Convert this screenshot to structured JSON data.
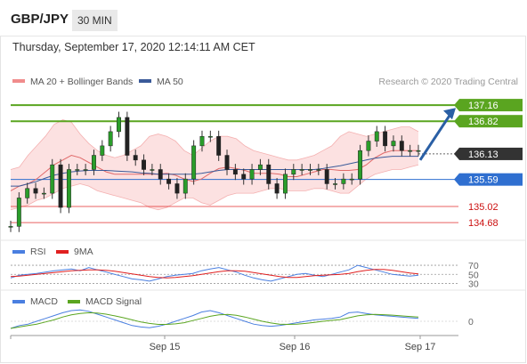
{
  "header": {
    "symbol": "GBP/JPY",
    "interval": "30 MIN",
    "datetime": "Thursday, September 17, 2020 12:14:11 AM CET"
  },
  "chart_data": [
    {
      "type": "line",
      "panel": "price",
      "legend": [
        {
          "name": "MA 20 + Bollinger Bands",
          "color": "#f08c8c"
        },
        {
          "name": "MA 50",
          "color": "#3a5a99"
        }
      ],
      "credit": "Research © 2020 Trading Central",
      "ylim": [
        134.4,
        137.5
      ],
      "price_series": [
        134.6,
        135.2,
        135.4,
        135.3,
        135.3,
        135.9,
        135.0,
        135.8,
        135.8,
        135.8,
        136.1,
        136.3,
        136.6,
        136.9,
        136.1,
        136.0,
        135.8,
        135.8,
        135.6,
        135.5,
        135.3,
        135.6,
        136.3,
        136.5,
        136.5,
        136.1,
        135.8,
        135.7,
        135.6,
        135.8,
        135.9,
        135.5,
        135.3,
        135.7,
        135.8,
        135.8,
        135.8,
        135.8,
        135.5,
        135.5,
        135.6,
        135.6,
        136.2,
        136.4,
        136.6,
        136.3,
        136.4,
        136.2,
        136.2,
        136.2
      ],
      "ma20": [
        135.35,
        135.45,
        135.5,
        135.6,
        135.75,
        135.9,
        136.0,
        136.1,
        136.05,
        135.95,
        135.85,
        135.75,
        135.7,
        135.7,
        135.7,
        135.7,
        135.7,
        135.7,
        135.72,
        135.68,
        135.6,
        135.55,
        135.6,
        135.72,
        135.82,
        135.85,
        135.82,
        135.78,
        135.72,
        135.72,
        135.72,
        135.7,
        135.65,
        135.65,
        135.7,
        135.75,
        135.8,
        135.8,
        135.78,
        135.78,
        135.8,
        135.9,
        136.05,
        136.15,
        136.2,
        136.2,
        136.2,
        136.2
      ],
      "ma50": [
        135.45,
        135.45,
        135.5,
        135.55,
        135.62,
        135.68,
        135.72,
        135.75,
        135.77,
        135.78,
        135.78,
        135.78,
        135.77,
        135.76,
        135.75,
        135.73,
        135.72,
        135.7,
        135.7,
        135.7,
        135.7,
        135.7,
        135.72,
        135.75,
        135.78,
        135.8,
        135.8,
        135.8,
        135.8,
        135.8,
        135.8,
        135.8,
        135.8,
        135.8,
        135.8,
        135.8,
        135.82,
        135.85,
        135.88,
        135.92,
        135.96,
        136.0,
        136.04,
        136.06,
        136.08,
        136.08,
        136.08,
        136.08
      ],
      "bb_upper": [
        135.8,
        135.85,
        136.1,
        136.3,
        136.5,
        136.75,
        136.85,
        136.8,
        136.55,
        136.35,
        136.2,
        136.1,
        136.05,
        136.1,
        136.2,
        136.3,
        136.5,
        136.55,
        136.5,
        136.4,
        136.2,
        136.1,
        136.25,
        136.4,
        136.5,
        136.5,
        136.45,
        136.3,
        136.2,
        136.15,
        136.1,
        136.05,
        136.0,
        136.0,
        136.05,
        136.1,
        136.2,
        136.3,
        136.5,
        136.6,
        136.55,
        136.5,
        136.55,
        136.6,
        136.65,
        136.7,
        136.7,
        136.6
      ],
      "bb_lower": [
        134.95,
        135.0,
        135.05,
        135.15,
        135.2,
        135.3,
        135.4,
        135.45,
        135.5,
        135.45,
        135.35,
        135.3,
        135.25,
        135.2,
        135.15,
        135.1,
        135.0,
        134.95,
        135.0,
        135.1,
        135.2,
        135.2,
        135.1,
        135.05,
        135.15,
        135.25,
        135.3,
        135.3,
        135.3,
        135.35,
        135.4,
        135.4,
        135.35,
        135.35,
        135.35,
        135.4,
        135.4,
        135.35,
        135.3,
        135.3,
        135.45,
        135.6,
        135.7,
        135.75,
        135.8,
        135.8,
        135.85,
        135.9
      ],
      "levels": [
        {
          "label": "137.16",
          "value": 137.16,
          "color": "#5aa520"
        },
        {
          "label": "136.82",
          "value": 136.82,
          "color": "#5aa520"
        },
        {
          "label": "136.13",
          "value": 136.13,
          "color": "#333333"
        },
        {
          "label": "135.59",
          "value": 135.59,
          "color": "#2f6fd0"
        },
        {
          "label": "135.02",
          "value": 135.02,
          "color": "#e02020"
        },
        {
          "label": "134.68",
          "value": 134.68,
          "color": "#e02020"
        }
      ],
      "forecast_arrow": {
        "from": 136.0,
        "to": 137.1,
        "color": "#2a5fa5"
      }
    },
    {
      "type": "line",
      "panel": "rsi",
      "legend": [
        {
          "name": "RSI",
          "color": "#4a7fe0"
        },
        {
          "name": "9MA",
          "color": "#e02020"
        }
      ],
      "ylim": [
        25,
        78
      ],
      "tick_labels": [
        "70",
        "50",
        "30"
      ],
      "ticks": [
        70,
        50,
        30
      ],
      "rsi": [
        42,
        48,
        50,
        52,
        55,
        58,
        60,
        62,
        58,
        65,
        60,
        55,
        50,
        45,
        40,
        38,
        35,
        40,
        45,
        48,
        50,
        52,
        58,
        62,
        65,
        60,
        55,
        48,
        42,
        38,
        35,
        40,
        45,
        50,
        52,
        48,
        45,
        50,
        55,
        60,
        70,
        65,
        60,
        55,
        50,
        48,
        46,
        48
      ],
      "ma9": [
        45,
        46,
        48,
        50,
        52,
        54,
        56,
        58,
        59,
        60,
        60,
        59,
        57,
        54,
        51,
        48,
        45,
        43,
        42,
        43,
        45,
        47,
        50,
        53,
        56,
        58,
        58,
        57,
        54,
        51,
        48,
        45,
        43,
        43,
        45,
        47,
        48,
        49,
        50,
        52,
        56,
        59,
        61,
        61,
        59,
        56,
        53,
        51
      ]
    },
    {
      "type": "line",
      "panel": "macd",
      "legend": [
        {
          "name": "MACD",
          "color": "#4a7fe0"
        },
        {
          "name": "MACD Signal",
          "color": "#5aa520"
        }
      ],
      "ylim": [
        -1,
        1
      ],
      "tick_labels": [
        "0"
      ],
      "ticks": [
        0
      ],
      "macd": [
        -0.5,
        -0.3,
        -0.2,
        0.0,
        0.2,
        0.4,
        0.6,
        0.75,
        0.8,
        0.7,
        0.5,
        0.3,
        0.1,
        -0.1,
        -0.3,
        -0.4,
        -0.45,
        -0.35,
        -0.2,
        0.0,
        0.2,
        0.4,
        0.65,
        0.75,
        0.6,
        0.4,
        0.2,
        0.0,
        -0.2,
        -0.3,
        -0.35,
        -0.3,
        -0.2,
        -0.1,
        0.0,
        0.1,
        0.15,
        0.2,
        0.3,
        0.6,
        0.65,
        0.55,
        0.45,
        0.4,
        0.35,
        0.3,
        0.25,
        0.2
      ],
      "signal": [
        -0.5,
        -0.4,
        -0.3,
        -0.2,
        -0.05,
        0.1,
        0.3,
        0.45,
        0.55,
        0.6,
        0.58,
        0.5,
        0.38,
        0.25,
        0.1,
        -0.05,
        -0.15,
        -0.22,
        -0.22,
        -0.18,
        -0.1,
        0.05,
        0.2,
        0.35,
        0.45,
        0.48,
        0.42,
        0.3,
        0.15,
        0.0,
        -0.12,
        -0.2,
        -0.22,
        -0.2,
        -0.15,
        -0.08,
        0.0,
        0.06,
        0.12,
        0.25,
        0.38,
        0.45,
        0.48,
        0.46,
        0.43,
        0.38,
        0.34,
        0.3
      ]
    }
  ],
  "x_axis": {
    "tick_labels": [
      "Sep 15",
      "Sep 16",
      "Sep 17"
    ]
  }
}
